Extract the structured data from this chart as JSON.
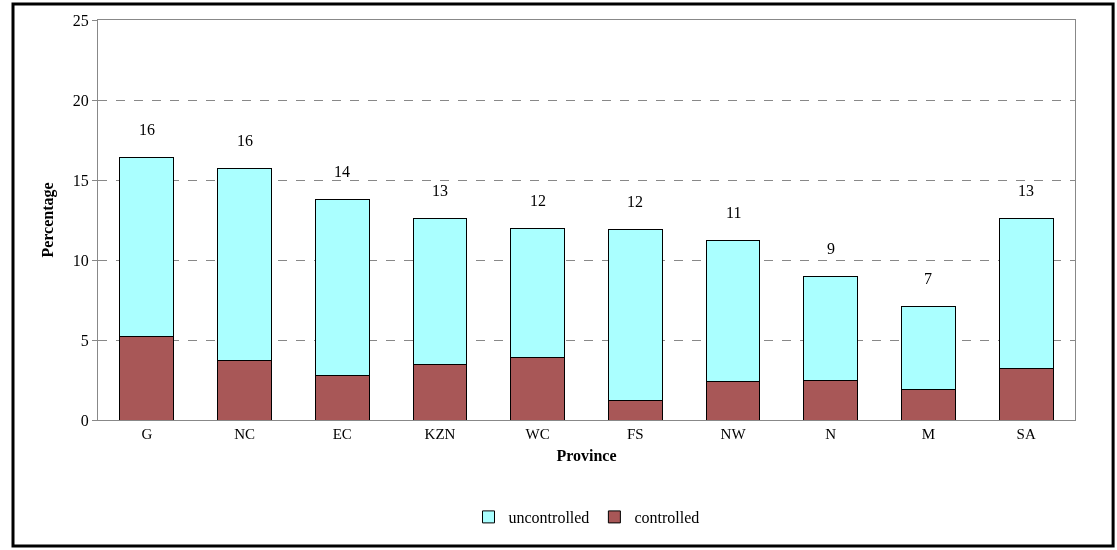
{
  "chart_data": {
    "type": "bar",
    "stacked": true,
    "xlabel": "Province",
    "ylabel": "Percentage",
    "categories": [
      "G",
      "NC",
      "EC",
      "KZN",
      "WC",
      "FS",
      "NW",
      "N",
      "M",
      "SA"
    ],
    "series": [
      {
        "name": "controlled",
        "color": "#a85757",
        "values": [
          5.2,
          3.7,
          2.8,
          3.5,
          3.9,
          1.2,
          2.4,
          2.5,
          1.9,
          3.2
        ]
      },
      {
        "name": "uncontrolled",
        "color": "#aaffff",
        "values": [
          11.2,
          12.0,
          11.0,
          9.1,
          8.1,
          10.7,
          8.8,
          6.5,
          5.2,
          9.4
        ]
      }
    ],
    "totals": [
      "16",
      "16",
      "14",
      "13",
      "12",
      "12",
      "11",
      "9",
      "7",
      "13"
    ],
    "ylim": [
      0,
      25
    ],
    "yticks": [
      0,
      5,
      10,
      15,
      20,
      25
    ],
    "grid": "y",
    "legend": "bottom"
  }
}
